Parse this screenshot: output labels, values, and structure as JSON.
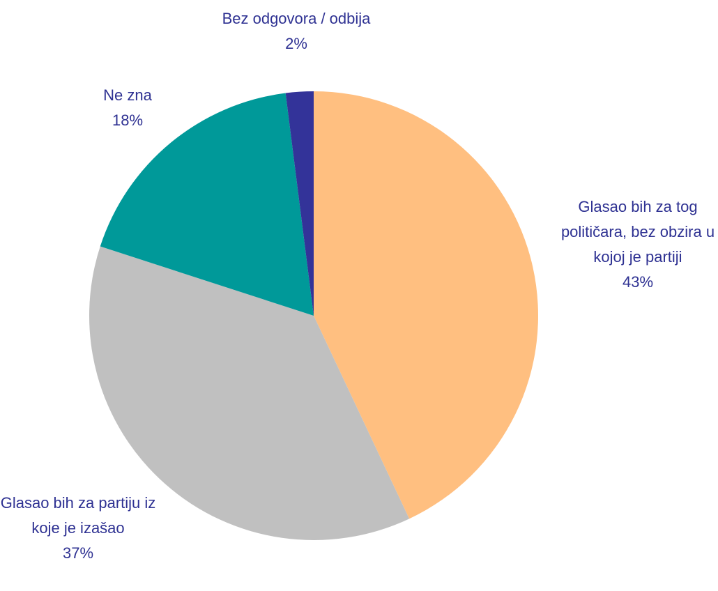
{
  "chart_data": {
    "type": "pie",
    "categories": [
      "Glasao bih za tog političara, bez obzira u kojoj je partiji",
      "Glasao bih za partiju iz koje je izašao",
      "Ne zna",
      "Bez odgovora / odbija"
    ],
    "values": [
      43,
      37,
      18,
      2
    ],
    "value_labels": [
      "43%",
      "37%",
      "18%",
      "2%"
    ],
    "colors": [
      "#ffbf80",
      "#c0c0c0",
      "#009999",
      "#333399"
    ]
  }
}
